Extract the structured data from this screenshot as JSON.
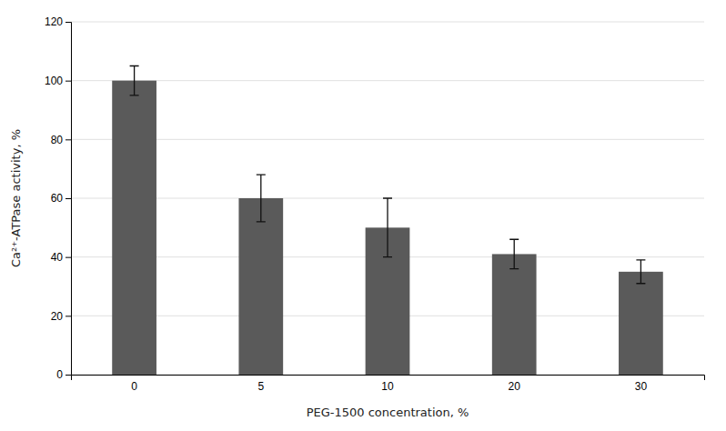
{
  "chart_data": {
    "type": "bar",
    "categories": [
      "0",
      "5",
      "10",
      "20",
      "30"
    ],
    "values": [
      100,
      60,
      50,
      41,
      35
    ],
    "errors": [
      5,
      8,
      10,
      5,
      4
    ],
    "color": "#5a5a5a",
    "xlabel": "PEG-1500 concentration, %",
    "ylabel": "Ca²⁺-ATPase activity, %",
    "ylim": [
      0,
      120
    ],
    "yticks": [
      0,
      20,
      40,
      60,
      80,
      100,
      120
    ],
    "grid": true
  }
}
